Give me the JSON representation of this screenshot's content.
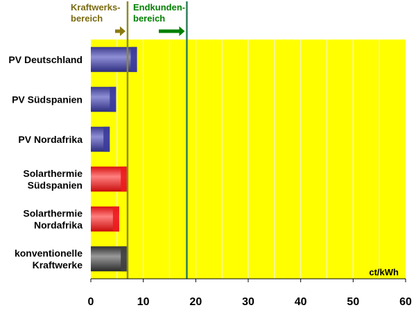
{
  "chart_data": {
    "type": "bar",
    "orientation": "horizontal",
    "categories": [
      [
        "PV Deutschland"
      ],
      [
        "PV Südspanien"
      ],
      [
        "PV Nordafrika"
      ],
      [
        "Solarthermie",
        "Südspanien"
      ],
      [
        "Solarthermie",
        "Nordafrika"
      ],
      [
        "konventionelle",
        "Kraftwerke"
      ]
    ],
    "values": [
      8.8,
      4.8,
      3.6,
      6.9,
      5.4,
      6.9
    ],
    "bar_colors": [
      "#3b3b9a",
      "#3b3b9a",
      "#3b3b9a",
      "#ee1c1c",
      "#ee1c1c",
      "#404040"
    ],
    "xlim": [
      0,
      60
    ],
    "xticks": [
      0,
      10,
      20,
      30,
      40,
      50,
      60
    ],
    "unit_label": "ct/kWh",
    "grid": true,
    "grid_color": "#f3f3c8",
    "plot_background": "#ffff00",
    "reference_lines": [
      {
        "label": [
          "Kraftwerks-",
          "bereich"
        ],
        "x": 7.0,
        "color": "#8b8b2a",
        "arrow_color": "#8b7a10",
        "text_color": "#7a6a10"
      },
      {
        "label": [
          "Endkunden-",
          "bereich"
        ],
        "x": 18.3,
        "color": "#2e7d5a",
        "arrow_color": "#008000",
        "text_color": "#008000"
      }
    ]
  }
}
